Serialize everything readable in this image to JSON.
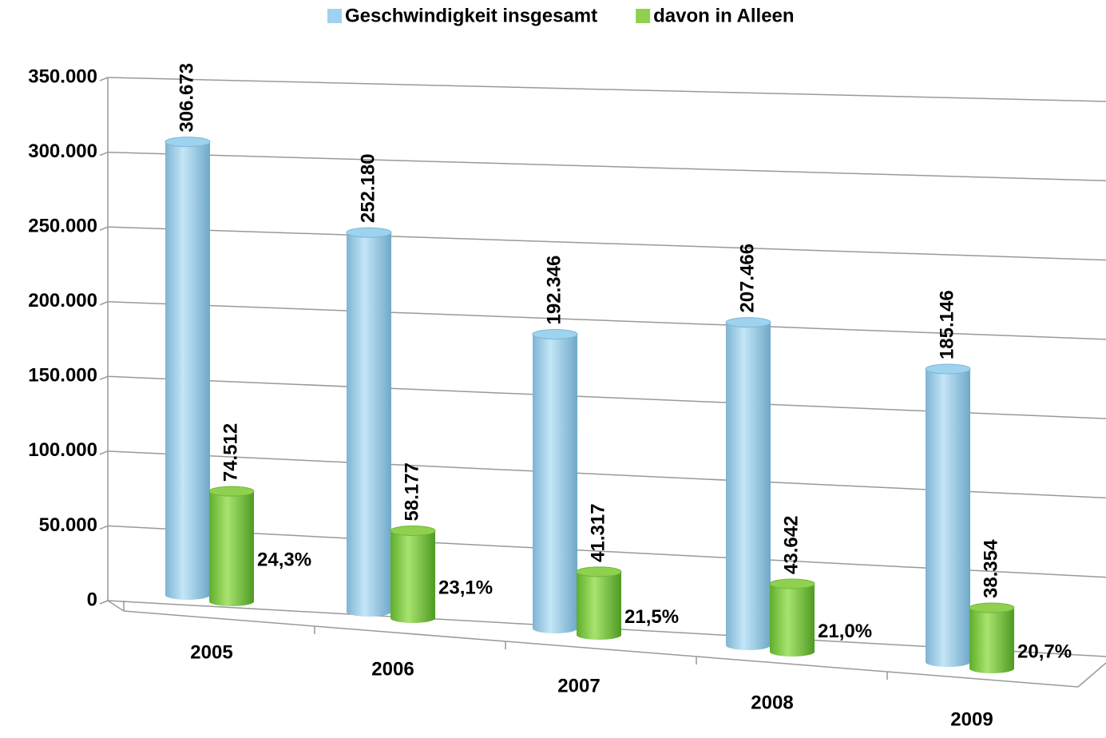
{
  "chart_data": {
    "type": "bar",
    "categories": [
      "2005",
      "2006",
      "2007",
      "2008",
      "2009"
    ],
    "series": [
      {
        "name": "Geschwindigkeit insgesamt",
        "color": "#9dd3ef",
        "values": [
          306673,
          252180,
          192346,
          207466,
          185146
        ],
        "value_labels": [
          "306.673",
          "252.180",
          "192.346",
          "207.466",
          "185.146"
        ]
      },
      {
        "name": "davon in Alleen",
        "color": "#8fd14f",
        "values": [
          74512,
          58177,
          41317,
          43642,
          38354
        ],
        "value_labels": [
          "74.512",
          "58.177",
          "41.317",
          "43.642",
          "38.354"
        ],
        "annotations": [
          "24,3%",
          "23,1%",
          "21,5%",
          "21,0%",
          "20,7%"
        ]
      }
    ],
    "ylim": [
      0,
      350000
    ],
    "yticks": [
      0,
      {
        "value": 50000,
        "label": "50.000"
      },
      {
        "value": 100000,
        "label": "100.000"
      },
      {
        "value": 150000,
        "label": "150.000"
      },
      {
        "value": 200000,
        "label": "200.000"
      },
      {
        "value": 250000,
        "label": "250.000"
      },
      {
        "value": 300000,
        "label": "300.000"
      },
      {
        "value": 350000,
        "label": "350.000"
      }
    ],
    "grid": true,
    "legend": "top"
  }
}
